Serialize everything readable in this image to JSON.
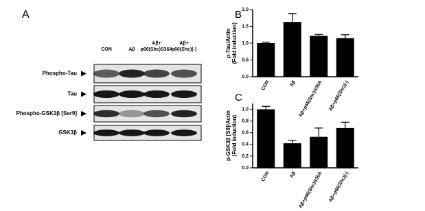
{
  "panel_a": {
    "label": "A",
    "lanes": [
      [
        "CON"
      ],
      [
        "Aβ"
      ],
      [
        "Aβ+",
        "p66(Shc)S36A"
      ],
      [
        "Aβ+",
        "p66(Shc)(-)"
      ]
    ],
    "rows": [
      "Phospho-Tau",
      "Tau",
      "Phospho-GSK3β [Ser9]",
      "GSK3β"
    ]
  },
  "chart_data": [
    {
      "type": "bar",
      "panel": "B",
      "ylabel": [
        "p-Tau/Actin",
        "(Fold induction)"
      ],
      "categories": [
        "CON",
        "Aβ",
        "Aβ+p66(Shc)S36A",
        "Aβ+p66(Shc)(-)"
      ],
      "values": [
        1.0,
        1.63,
        1.22,
        1.15
      ],
      "errors": [
        0.03,
        0.25,
        0.04,
        0.1
      ],
      "color": "#000000",
      "ylim": [
        0,
        2.0
      ],
      "yticks": [
        {
          "value": 0,
          "label": "0.0"
        },
        0.5,
        {
          "value": 1,
          "label": "1.0"
        },
        1.5,
        {
          "value": 2,
          "label": "2.0"
        }
      ]
    },
    {
      "type": "bar",
      "panel": "C",
      "ylabel": [
        "p-GSK3β [S9]/Actin",
        "(Fold induction)"
      ],
      "categories": [
        "CON",
        "Aβ",
        "Aβ+p66(Shc)S36A",
        "Aβ+p66(Shc)(-)"
      ],
      "values": [
        1.0,
        0.42,
        0.53,
        0.68
      ],
      "errors": [
        0.05,
        0.05,
        0.15,
        0.1
      ],
      "color": "#000000",
      "ylim": [
        0,
        1.1
      ],
      "yticks": [
        {
          "value": 0,
          "label": "0.0"
        },
        0.2,
        0.4,
        0.6,
        0.8,
        {
          "value": 1,
          "label": "1.0"
        }
      ]
    }
  ]
}
